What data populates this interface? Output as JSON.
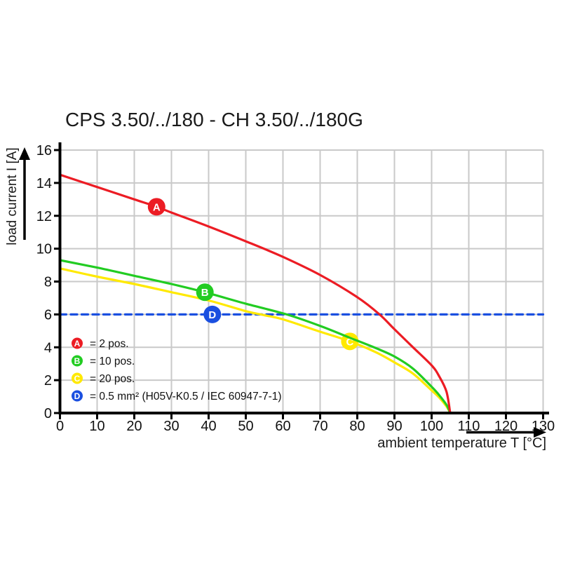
{
  "chart_data": {
    "type": "line",
    "title": "CPS 3.50/../180 - CH 3.50/../180G",
    "xlabel": "ambient temperature T [°C]",
    "ylabel": "load current I [A]",
    "xlim": [
      0,
      130
    ],
    "ylim": [
      0,
      16
    ],
    "xticks": [
      0,
      10,
      20,
      30,
      40,
      50,
      60,
      70,
      80,
      90,
      100,
      110,
      120,
      130
    ],
    "yticks": [
      0,
      2,
      4,
      6,
      8,
      10,
      12,
      14,
      16
    ],
    "grid": true,
    "legend_position": "inside-bottom-left",
    "series": [
      {
        "id": "A",
        "label": "= 2 pos.",
        "color": "#ec1c24",
        "style": "solid",
        "marker_at": [
          26,
          12.55
        ],
        "points": [
          [
            0,
            14.5
          ],
          [
            10,
            13.75
          ],
          [
            20,
            13.0
          ],
          [
            26,
            12.55
          ],
          [
            30,
            12.2
          ],
          [
            40,
            11.35
          ],
          [
            50,
            10.45
          ],
          [
            60,
            9.5
          ],
          [
            70,
            8.4
          ],
          [
            80,
            7.05
          ],
          [
            86,
            6.0
          ],
          [
            90,
            5.1
          ],
          [
            95,
            4.0
          ],
          [
            100,
            2.9
          ],
          [
            102,
            2.25
          ],
          [
            104,
            1.3
          ],
          [
            105,
            0
          ]
        ]
      },
      {
        "id": "B",
        "label": "= 10 pos.",
        "color": "#22cc22",
        "style": "solid",
        "marker_at": [
          39,
          7.35
        ],
        "points": [
          [
            0,
            9.3
          ],
          [
            10,
            8.85
          ],
          [
            20,
            8.35
          ],
          [
            30,
            7.85
          ],
          [
            39,
            7.35
          ],
          [
            50,
            6.65
          ],
          [
            61,
            6.0
          ],
          [
            70,
            5.3
          ],
          [
            78,
            4.58
          ],
          [
            85,
            3.95
          ],
          [
            90,
            3.44
          ],
          [
            95,
            2.7
          ],
          [
            100,
            1.6
          ],
          [
            102,
            1.1
          ],
          [
            104,
            0.5
          ],
          [
            105,
            0
          ]
        ]
      },
      {
        "id": "C",
        "label": "= 20 pos.",
        "color": "#ffe900",
        "style": "solid",
        "marker_at": [
          78,
          4.36
        ],
        "points": [
          [
            0,
            8.8
          ],
          [
            10,
            8.3
          ],
          [
            20,
            7.85
          ],
          [
            30,
            7.35
          ],
          [
            40,
            6.85
          ],
          [
            50,
            6.2
          ],
          [
            55,
            5.95
          ],
          [
            60,
            5.7
          ],
          [
            70,
            4.95
          ],
          [
            78,
            4.36
          ],
          [
            85,
            3.7
          ],
          [
            90,
            3.08
          ],
          [
            95,
            2.4
          ],
          [
            100,
            1.38
          ],
          [
            102,
            0.95
          ],
          [
            104,
            0.4
          ],
          [
            105,
            0
          ]
        ]
      },
      {
        "id": "D",
        "label": "= 0.5 mm² (H05V-K0.5 / IEC 60947-7-1)",
        "color": "#1a4fe0",
        "style": "dashed",
        "marker_at": [
          41,
          6
        ],
        "points": [
          [
            0,
            6
          ],
          [
            130,
            6
          ]
        ]
      }
    ]
  }
}
